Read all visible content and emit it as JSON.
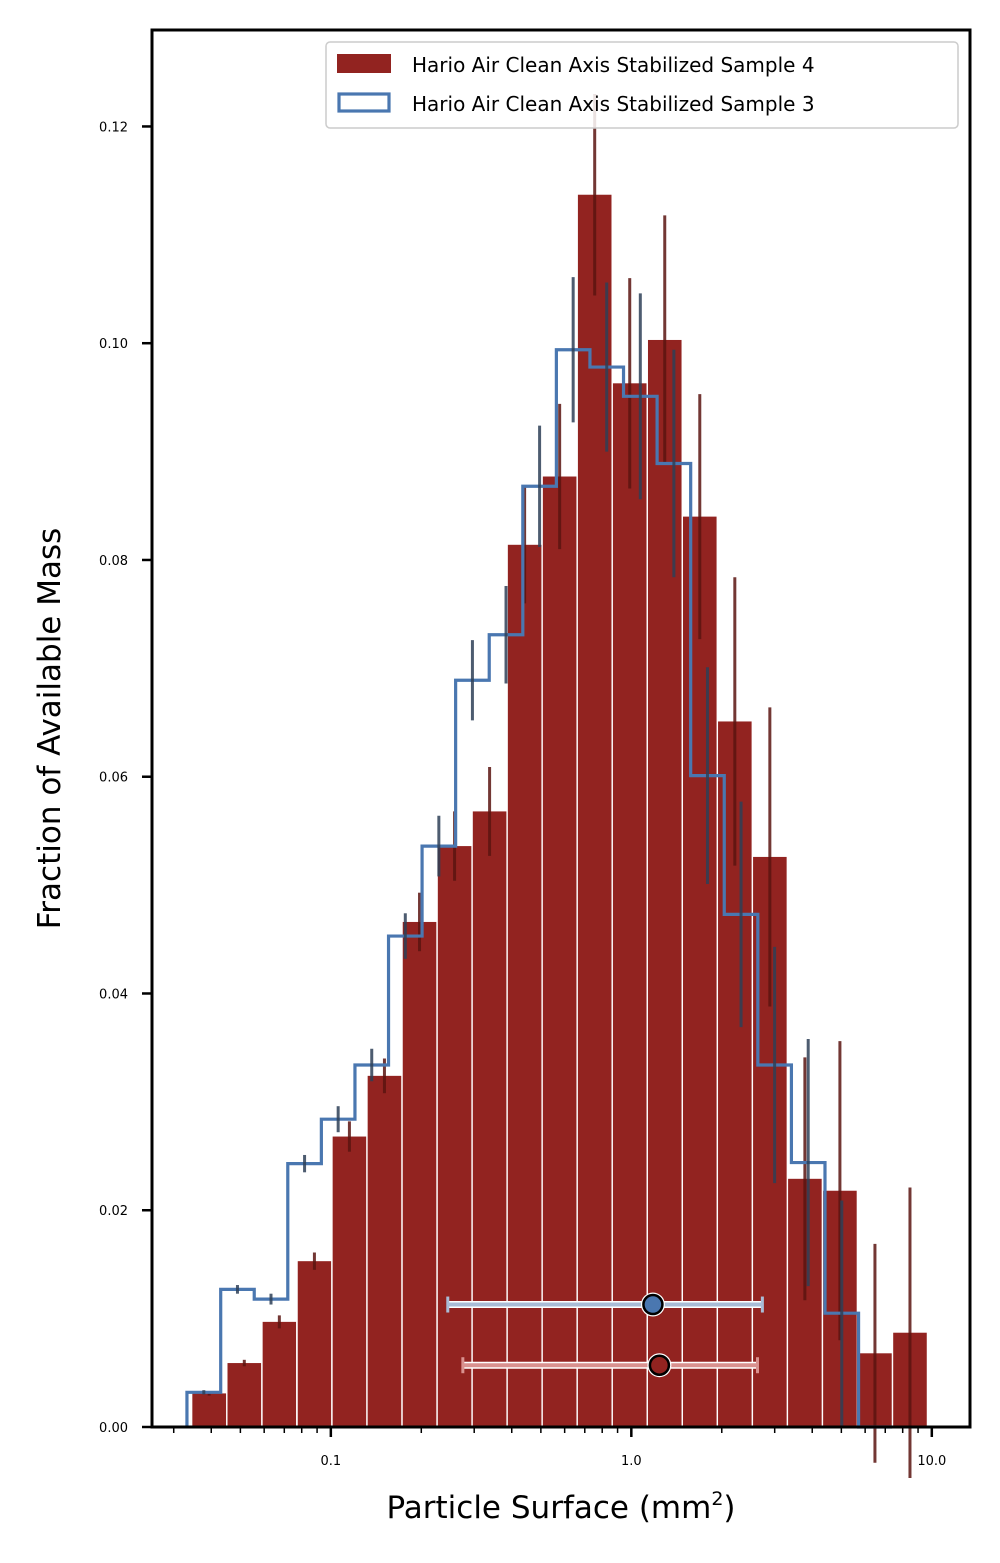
{
  "chart_data": {
    "type": "bar",
    "xlabel": "Particle Surface (mm",
    "xlabel_sup": "2",
    "xlabel_end": ")",
    "ylabel": "Fraction of Available Mass",
    "x_scale": "log",
    "xlim": [
      0.0254,
      13.4
    ],
    "ylim": [
      0.0,
      0.1289
    ],
    "xticks": [
      {
        "value": 0.1,
        "label": "0.1"
      },
      {
        "value": 1.0,
        "label": "1.0"
      },
      {
        "value": 10.0,
        "label": "10.0"
      }
    ],
    "yticks": [
      {
        "value": 0.0,
        "label": "0.00"
      },
      {
        "value": 0.02,
        "label": "0.02"
      },
      {
        "value": 0.04,
        "label": "0.04"
      },
      {
        "value": 0.06,
        "label": "0.06"
      },
      {
        "value": 0.08,
        "label": "0.08"
      },
      {
        "value": 0.1,
        "label": "0.10"
      },
      {
        "value": 0.12,
        "label": "0.12"
      }
    ],
    "legend_position": "top-right",
    "series": [
      {
        "name": "Hario Air Clean Axis Stabilized Sample 4",
        "style": "bar",
        "color": "#922320",
        "bins": [
          {
            "x0": 0.0346,
            "x1": 0.0448,
            "y": 0.0031,
            "err": 0.0002
          },
          {
            "x0": 0.0453,
            "x1": 0.0586,
            "y": 0.0059,
            "err": 0.0003
          },
          {
            "x0": 0.0593,
            "x1": 0.0766,
            "y": 0.0097,
            "err": 0.0006
          },
          {
            "x0": 0.0776,
            "x1": 0.1002,
            "y": 0.0153,
            "err": 0.0008
          },
          {
            "x0": 0.1014,
            "x1": 0.1311,
            "y": 0.0268,
            "err": 0.0014
          },
          {
            "x0": 0.1326,
            "x1": 0.1715,
            "y": 0.0324,
            "err": 0.0016
          },
          {
            "x0": 0.1735,
            "x1": 0.2244,
            "y": 0.0466,
            "err": 0.0027
          },
          {
            "x0": 0.227,
            "x1": 0.2935,
            "y": 0.0536,
            "err": 0.0032
          },
          {
            "x0": 0.2968,
            "x1": 0.3839,
            "y": 0.0568,
            "err": 0.0041
          },
          {
            "x0": 0.3882,
            "x1": 0.5021,
            "y": 0.0814,
            "err": 0.0054
          },
          {
            "x0": 0.5077,
            "x1": 0.6567,
            "y": 0.0877,
            "err": 0.0067
          },
          {
            "x0": 0.6641,
            "x1": 0.859,
            "y": 0.1137,
            "err": 0.0093
          },
          {
            "x0": 0.8686,
            "x1": 1.1235,
            "y": 0.0963,
            "err": 0.0097
          },
          {
            "x0": 1.1361,
            "x1": 1.4693,
            "y": 0.1003,
            "err": 0.0115
          },
          {
            "x0": 1.4859,
            "x1": 1.9218,
            "y": 0.084,
            "err": 0.0113
          },
          {
            "x0": 1.9435,
            "x1": 2.5136,
            "y": 0.0651,
            "err": 0.0133
          },
          {
            "x0": 2.5419,
            "x1": 3.2876,
            "y": 0.0526,
            "err": 0.0138
          },
          {
            "x0": 3.3246,
            "x1": 4.2999,
            "y": 0.0229,
            "err": 0.0112
          },
          {
            "x0": 4.3484,
            "x1": 5.624,
            "y": 0.0218,
            "err": 0.0138
          },
          {
            "x0": 5.6874,
            "x1": 7.3559,
            "y": 0.0068,
            "err": 0.0101
          },
          {
            "x0": 7.4387,
            "x1": 9.6208,
            "y": 0.0087,
            "err": 0.0134
          }
        ],
        "summary_point": {
          "x": 1.24,
          "xerr_low": 0.275,
          "xerr_high": 2.63,
          "y": 0.0057
        }
      },
      {
        "name": "Hario Air Clean Axis Stabilized Sample 3",
        "style": "step",
        "color": "#4a77b0",
        "bins": [
          {
            "x0": 0.0332,
            "x1": 0.043,
            "y": 0.0032,
            "err": 0.0002
          },
          {
            "x0": 0.043,
            "x1": 0.0556,
            "y": 0.0127,
            "err": 0.0004
          },
          {
            "x0": 0.0556,
            "x1": 0.0719,
            "y": 0.0118,
            "err": 0.0005
          },
          {
            "x0": 0.0719,
            "x1": 0.093,
            "y": 0.0243,
            "err": 0.0008
          },
          {
            "x0": 0.093,
            "x1": 0.1203,
            "y": 0.0284,
            "err": 0.0012
          },
          {
            "x0": 0.1203,
            "x1": 0.1556,
            "y": 0.0334,
            "err": 0.0015
          },
          {
            "x0": 0.1556,
            "x1": 0.2012,
            "y": 0.0453,
            "err": 0.0021
          },
          {
            "x0": 0.2012,
            "x1": 0.2602,
            "y": 0.0536,
            "err": 0.0028
          },
          {
            "x0": 0.2602,
            "x1": 0.3366,
            "y": 0.0689,
            "err": 0.0037
          },
          {
            "x0": 0.3366,
            "x1": 0.4354,
            "y": 0.0731,
            "err": 0.0045
          },
          {
            "x0": 0.4354,
            "x1": 0.5631,
            "y": 0.0868,
            "err": 0.0056
          },
          {
            "x0": 0.5631,
            "x1": 0.7283,
            "y": 0.0994,
            "err": 0.0067
          },
          {
            "x0": 0.7283,
            "x1": 0.942,
            "y": 0.0978,
            "err": 0.0078
          },
          {
            "x0": 0.942,
            "x1": 1.2184,
            "y": 0.0951,
            "err": 0.0095
          },
          {
            "x0": 1.2184,
            "x1": 1.576,
            "y": 0.0889,
            "err": 0.0105
          },
          {
            "x0": 1.576,
            "x1": 2.0384,
            "y": 0.0601,
            "err": 0.01
          },
          {
            "x0": 2.0384,
            "x1": 2.6365,
            "y": 0.0473,
            "err": 0.0104
          },
          {
            "x0": 2.6365,
            "x1": 3.4101,
            "y": 0.0334,
            "err": 0.0109
          },
          {
            "x0": 3.4101,
            "x1": 4.4107,
            "y": 0.0244,
            "err": 0.0114
          },
          {
            "x0": 4.4107,
            "x1": 5.705,
            "y": 0.0105,
            "err": 0.0104
          },
          {
            "x0": 5.705,
            "x1": 7.379,
            "y": 0.0,
            "err": 0.0
          }
        ],
        "summary_point": {
          "x": 1.18,
          "xerr_low": 0.245,
          "xerr_high": 2.73,
          "y": 0.0113
        }
      }
    ]
  }
}
